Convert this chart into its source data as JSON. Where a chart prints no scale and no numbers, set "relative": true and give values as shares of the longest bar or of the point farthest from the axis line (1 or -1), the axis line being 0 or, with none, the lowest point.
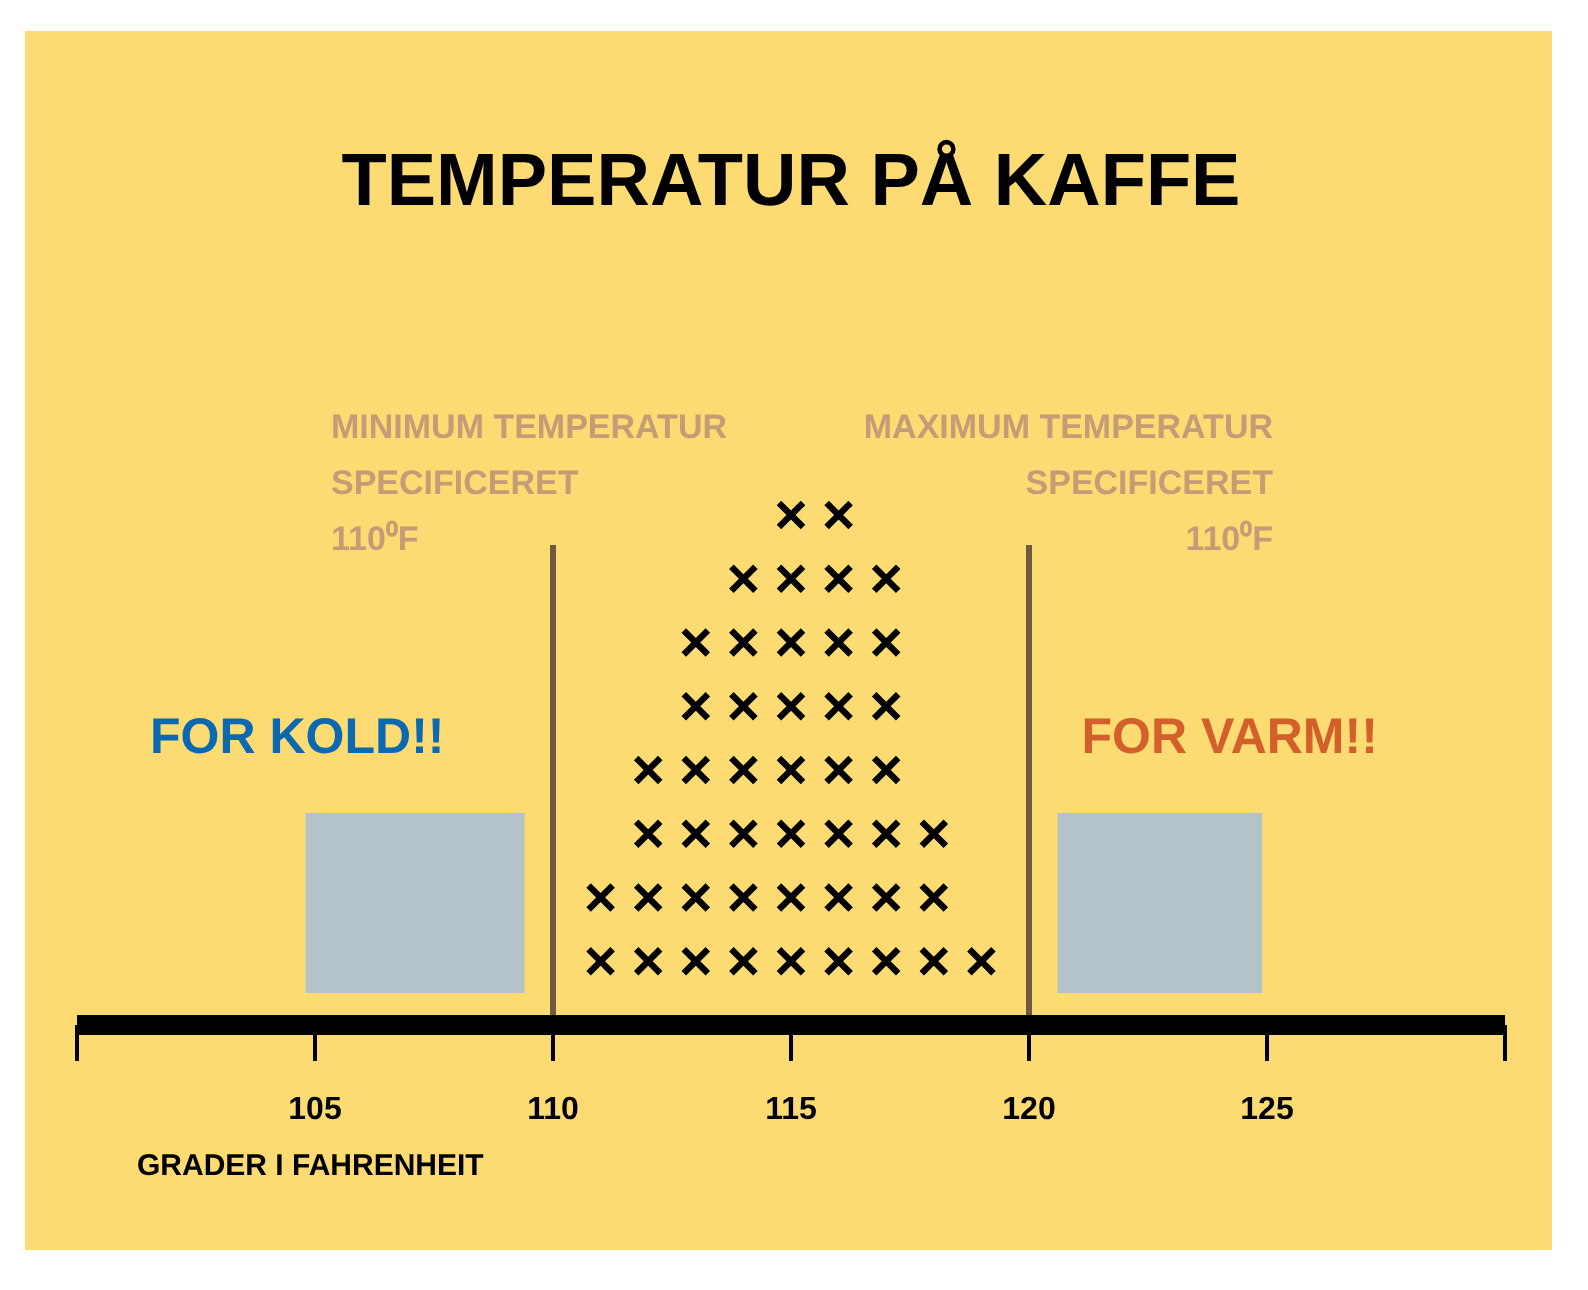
{
  "chart_data": {
    "type": "scatter",
    "title": "TEMPERATUR PÅ KAFFE",
    "xlabel": "GRADER I FAHRENHEIT",
    "relative": true,
    "marker": "cross",
    "xlim": [
      100,
      130
    ],
    "xticks": [
      {
        "value": 100,
        "label": null
      },
      105,
      110,
      115,
      120,
      125,
      {
        "value": 130,
        "label": null
      }
    ],
    "series": [
      {
        "color": "#000000",
        "x": [
          111,
          111,
          112,
          112,
          112,
          112,
          113,
          113,
          113,
          113,
          113,
          113,
          114,
          114,
          114,
          114,
          114,
          114,
          114,
          115,
          115,
          115,
          115,
          115,
          115,
          115,
          115,
          116,
          116,
          116,
          116,
          116,
          116,
          116,
          116,
          117,
          117,
          117,
          117,
          117,
          117,
          117,
          118,
          118,
          118,
          119
        ],
        "values": [
          0.125,
          0.25,
          0.125,
          0.25,
          0.375,
          0.5,
          0.125,
          0.25,
          0.375,
          0.5,
          0.625,
          0.75,
          0.125,
          0.25,
          0.375,
          0.5,
          0.625,
          0.75,
          0.875,
          0.125,
          0.25,
          0.375,
          0.5,
          0.625,
          0.75,
          0.875,
          1,
          0.125,
          0.25,
          0.375,
          0.5,
          0.625,
          0.75,
          0.875,
          1,
          0.125,
          0.25,
          0.375,
          0.5,
          0.625,
          0.75,
          0.875,
          0.125,
          0.25,
          0.375,
          0.125
        ]
      }
    ],
    "ref_lines": [
      {
        "axis": "x",
        "value": 110,
        "label": "MINIMUM TEMPERATUR\nSPECIFICERET\n110⁰F",
        "color": "#6f5a3e"
      },
      {
        "axis": "x",
        "value": 120,
        "label": "MAXIMUM TEMPERATUR\nSPECIFICERET\n110⁰F",
        "color": "#6f5a3e"
      }
    ],
    "bands": [
      {
        "axis": "x",
        "from": 104.8,
        "to": 109.4,
        "label": "FOR KOLD!!",
        "color": "#b4c2ca"
      },
      {
        "axis": "x",
        "from": 120.6,
        "to": 124.9,
        "label": "FOR VARM!!",
        "color": "#b4c2ca"
      }
    ]
  }
}
